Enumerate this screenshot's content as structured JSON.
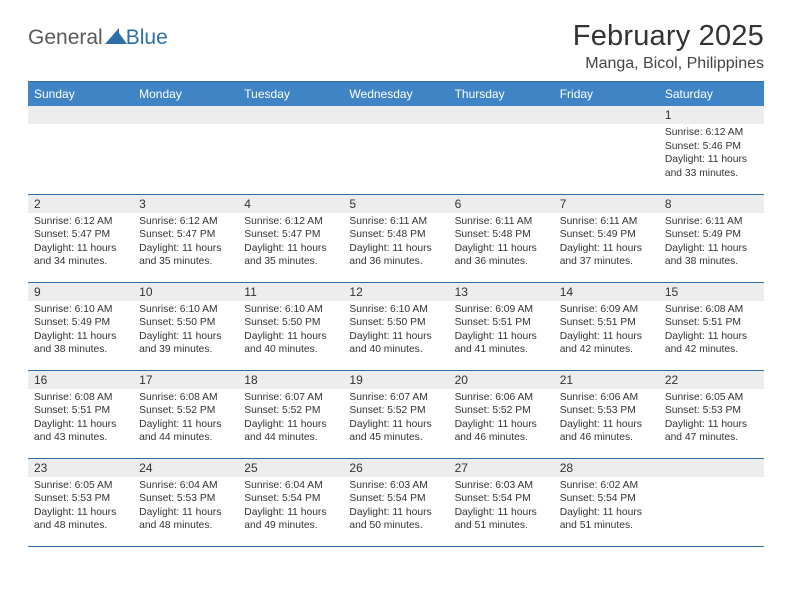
{
  "logo": {
    "text1": "General",
    "text2": "Blue"
  },
  "title": "February 2025",
  "location": "Manga, Bicol, Philippines",
  "colors": {
    "header_bg": "#3f85c6",
    "header_border": "#3a6e9e",
    "row_border": "#2f6fa8",
    "daynum_bg": "#ededed",
    "logo_gray": "#5a5a5a",
    "logo_blue": "#2f6fa8"
  },
  "week_days": [
    "Sunday",
    "Monday",
    "Tuesday",
    "Wednesday",
    "Thursday",
    "Friday",
    "Saturday"
  ],
  "weeks": [
    [
      {
        "blank": true
      },
      {
        "blank": true
      },
      {
        "blank": true
      },
      {
        "blank": true
      },
      {
        "blank": true
      },
      {
        "blank": true
      },
      {
        "d": "1",
        "sr": "6:12 AM",
        "ss": "5:46 PM",
        "dl": "11 hours and 33 minutes."
      }
    ],
    [
      {
        "d": "2",
        "sr": "6:12 AM",
        "ss": "5:47 PM",
        "dl": "11 hours and 34 minutes."
      },
      {
        "d": "3",
        "sr": "6:12 AM",
        "ss": "5:47 PM",
        "dl": "11 hours and 35 minutes."
      },
      {
        "d": "4",
        "sr": "6:12 AM",
        "ss": "5:47 PM",
        "dl": "11 hours and 35 minutes."
      },
      {
        "d": "5",
        "sr": "6:11 AM",
        "ss": "5:48 PM",
        "dl": "11 hours and 36 minutes."
      },
      {
        "d": "6",
        "sr": "6:11 AM",
        "ss": "5:48 PM",
        "dl": "11 hours and 36 minutes."
      },
      {
        "d": "7",
        "sr": "6:11 AM",
        "ss": "5:49 PM",
        "dl": "11 hours and 37 minutes."
      },
      {
        "d": "8",
        "sr": "6:11 AM",
        "ss": "5:49 PM",
        "dl": "11 hours and 38 minutes."
      }
    ],
    [
      {
        "d": "9",
        "sr": "6:10 AM",
        "ss": "5:49 PM",
        "dl": "11 hours and 38 minutes."
      },
      {
        "d": "10",
        "sr": "6:10 AM",
        "ss": "5:50 PM",
        "dl": "11 hours and 39 minutes."
      },
      {
        "d": "11",
        "sr": "6:10 AM",
        "ss": "5:50 PM",
        "dl": "11 hours and 40 minutes."
      },
      {
        "d": "12",
        "sr": "6:10 AM",
        "ss": "5:50 PM",
        "dl": "11 hours and 40 minutes."
      },
      {
        "d": "13",
        "sr": "6:09 AM",
        "ss": "5:51 PM",
        "dl": "11 hours and 41 minutes."
      },
      {
        "d": "14",
        "sr": "6:09 AM",
        "ss": "5:51 PM",
        "dl": "11 hours and 42 minutes."
      },
      {
        "d": "15",
        "sr": "6:08 AM",
        "ss": "5:51 PM",
        "dl": "11 hours and 42 minutes."
      }
    ],
    [
      {
        "d": "16",
        "sr": "6:08 AM",
        "ss": "5:51 PM",
        "dl": "11 hours and 43 minutes."
      },
      {
        "d": "17",
        "sr": "6:08 AM",
        "ss": "5:52 PM",
        "dl": "11 hours and 44 minutes."
      },
      {
        "d": "18",
        "sr": "6:07 AM",
        "ss": "5:52 PM",
        "dl": "11 hours and 44 minutes."
      },
      {
        "d": "19",
        "sr": "6:07 AM",
        "ss": "5:52 PM",
        "dl": "11 hours and 45 minutes."
      },
      {
        "d": "20",
        "sr": "6:06 AM",
        "ss": "5:52 PM",
        "dl": "11 hours and 46 minutes."
      },
      {
        "d": "21",
        "sr": "6:06 AM",
        "ss": "5:53 PM",
        "dl": "11 hours and 46 minutes."
      },
      {
        "d": "22",
        "sr": "6:05 AM",
        "ss": "5:53 PM",
        "dl": "11 hours and 47 minutes."
      }
    ],
    [
      {
        "d": "23",
        "sr": "6:05 AM",
        "ss": "5:53 PM",
        "dl": "11 hours and 48 minutes."
      },
      {
        "d": "24",
        "sr": "6:04 AM",
        "ss": "5:53 PM",
        "dl": "11 hours and 48 minutes."
      },
      {
        "d": "25",
        "sr": "6:04 AM",
        "ss": "5:54 PM",
        "dl": "11 hours and 49 minutes."
      },
      {
        "d": "26",
        "sr": "6:03 AM",
        "ss": "5:54 PM",
        "dl": "11 hours and 50 minutes."
      },
      {
        "d": "27",
        "sr": "6:03 AM",
        "ss": "5:54 PM",
        "dl": "11 hours and 51 minutes."
      },
      {
        "d": "28",
        "sr": "6:02 AM",
        "ss": "5:54 PM",
        "dl": "11 hours and 51 minutes."
      },
      {
        "blank": true
      }
    ]
  ],
  "labels": {
    "sunrise": "Sunrise:",
    "sunset": "Sunset:",
    "daylight": "Daylight:"
  }
}
